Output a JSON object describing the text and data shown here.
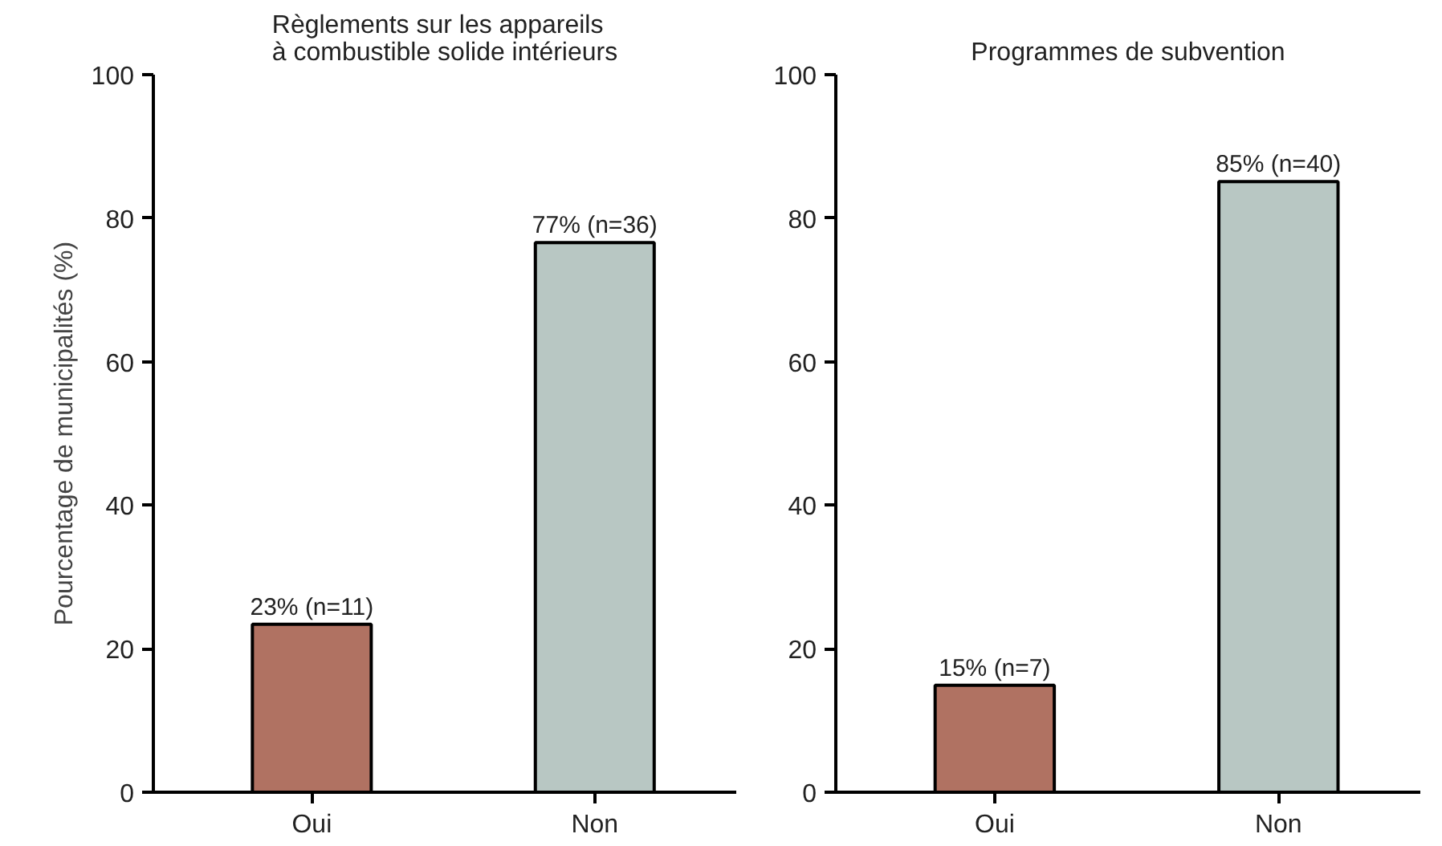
{
  "chart_data": [
    {
      "type": "bar",
      "title": "Règlements sur les appareils\nà combustible solide intérieurs",
      "ylabel": "Pourcentage de municipalités (%)",
      "categories": [
        "Oui",
        "Non"
      ],
      "values": [
        23.4,
        76.6
      ],
      "colors": [
        "#b07262",
        "#b8c7c3"
      ],
      "value_labels": [
        "23% (n=11)",
        "77% (n=36)"
      ],
      "ylim": [
        0,
        100
      ],
      "yticks": [
        0,
        20,
        40,
        60,
        80,
        100
      ],
      "grid": false
    },
    {
      "type": "bar",
      "title": "Programmes de subvention",
      "categories": [
        "Oui",
        "Non"
      ],
      "values": [
        14.9,
        85.1
      ],
      "colors": [
        "#b07262",
        "#b8c7c3"
      ],
      "value_labels": [
        "15% (n=7)",
        "85% (n=40)"
      ],
      "ylim": [
        0,
        100
      ],
      "yticks": [
        0,
        20,
        40,
        60,
        80,
        100
      ],
      "grid": false
    }
  ]
}
